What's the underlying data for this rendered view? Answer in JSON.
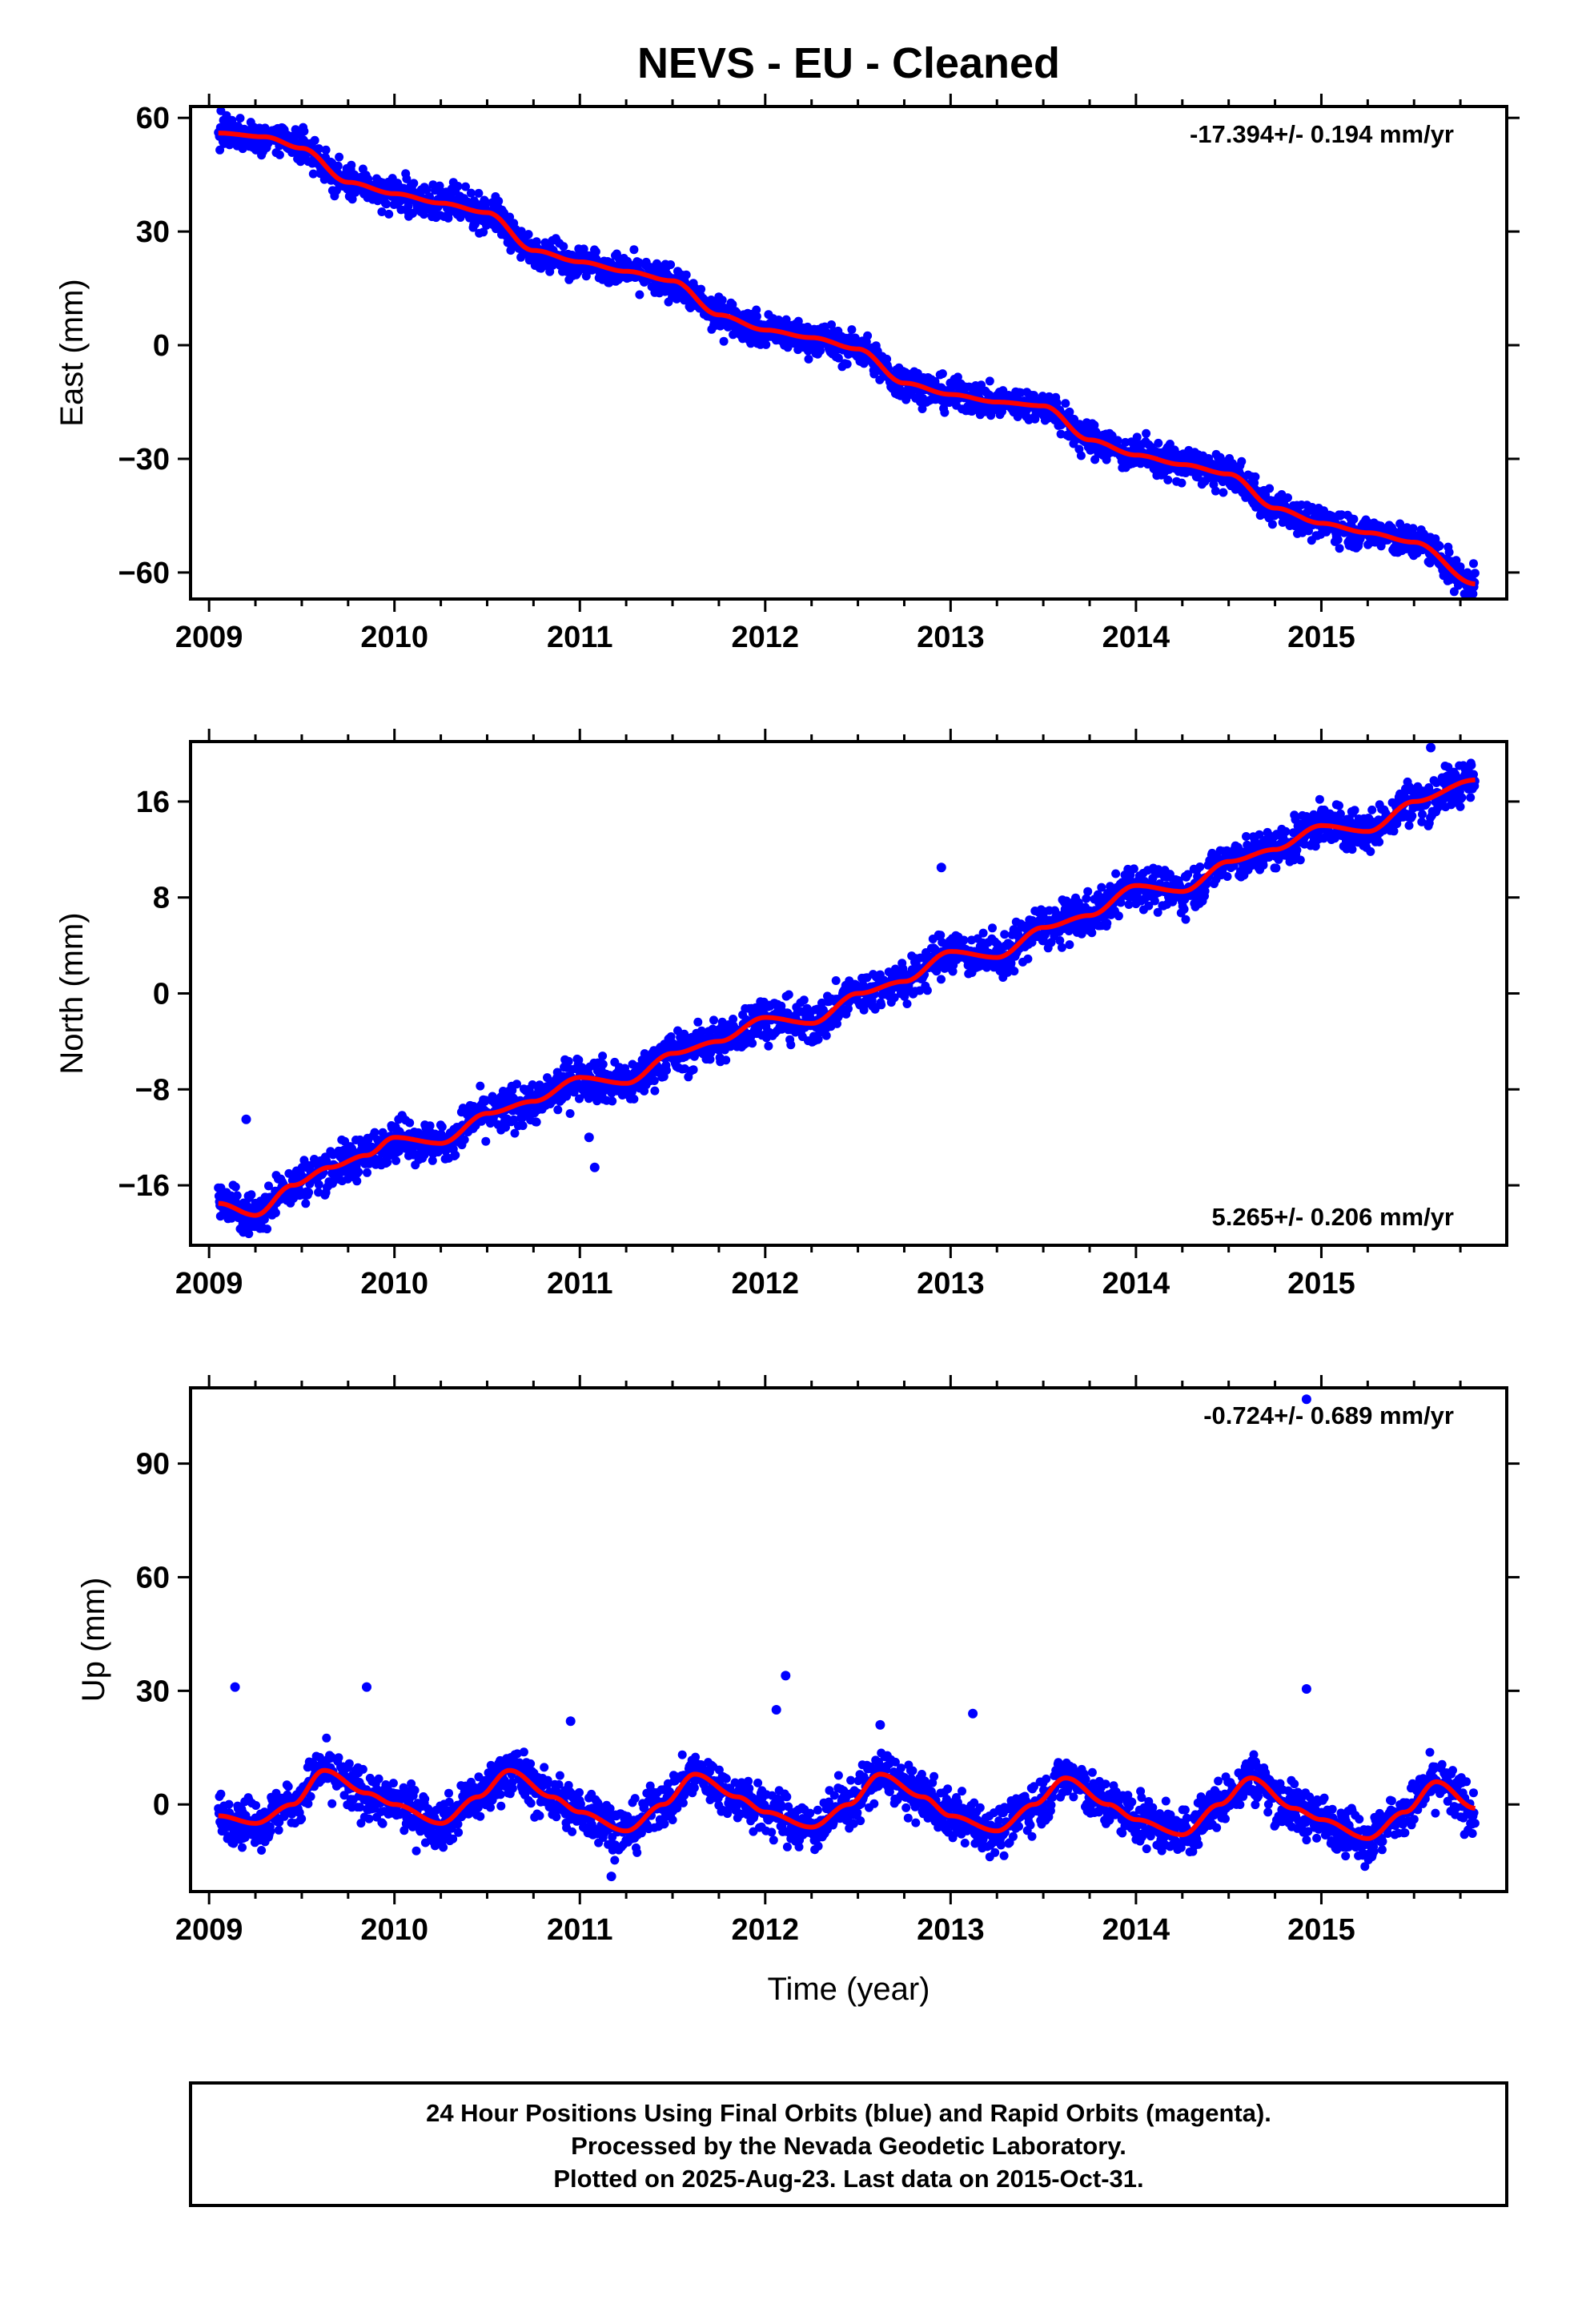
{
  "title": "NEVS  - EU - Cleaned",
  "colors": {
    "final_orbits": "#0000ff",
    "model": "#ff0000",
    "frame": "#000000",
    "background": "#ffffff"
  },
  "chart_data": [
    {
      "type": "scatter",
      "ylabel": "East (mm)",
      "xlim": [
        2008.9,
        2016.0
      ],
      "ylim": [
        -67,
        63
      ],
      "xticks": [
        2009,
        2010,
        2011,
        2012,
        2013,
        2014,
        2015
      ],
      "yticks": [
        60,
        30,
        0,
        -30,
        -60
      ],
      "rate_label": "-17.394+/- 0.194 mm/yr",
      "rate_position": "top-right",
      "model": {
        "x": [
          2009.05,
          2009.3,
          2009.5,
          2009.75,
          2010.0,
          2010.25,
          2010.5,
          2010.75,
          2011.0,
          2011.25,
          2011.5,
          2011.75,
          2012.0,
          2012.25,
          2012.5,
          2012.75,
          2013.0,
          2013.25,
          2013.5,
          2013.75,
          2014.0,
          2014.25,
          2014.5,
          2014.75,
          2015.0,
          2015.25,
          2015.5,
          2015.83
        ],
        "y": [
          56,
          55,
          52,
          43,
          40,
          37.5,
          35,
          25,
          22,
          19.5,
          17,
          8,
          4,
          2,
          -1,
          -10,
          -13,
          -15,
          -16,
          -25,
          -29,
          -31.5,
          -34,
          -43,
          -47,
          -49.5,
          -52,
          -63
        ]
      },
      "outliers": []
    },
    {
      "type": "scatter",
      "ylabel": "North (mm)",
      "xlim": [
        2008.9,
        2016.0
      ],
      "ylim": [
        -21,
        21
      ],
      "xticks": [
        2009,
        2010,
        2011,
        2012,
        2013,
        2014,
        2015
      ],
      "yticks": [
        16,
        8,
        0,
        -8,
        -16
      ],
      "rate_label": "5.265+/- 0.206 mm/yr",
      "rate_position": "bottom-right",
      "model": {
        "x": [
          2009.05,
          2009.25,
          2009.45,
          2009.65,
          2009.85,
          2010.0,
          2010.25,
          2010.5,
          2010.75,
          2011.0,
          2011.25,
          2011.5,
          2011.75,
          2012.0,
          2012.25,
          2012.5,
          2012.75,
          2013.0,
          2013.25,
          2013.5,
          2013.75,
          2014.0,
          2014.25,
          2014.5,
          2014.75,
          2015.0,
          2015.25,
          2015.5,
          2015.83
        ],
        "y": [
          -17.5,
          -18.5,
          -16,
          -14.5,
          -13.5,
          -12,
          -12.5,
          -10,
          -9,
          -7,
          -7.5,
          -5,
          -4,
          -2,
          -2.5,
          0,
          1,
          3.5,
          3,
          5.5,
          6.5,
          9,
          8.5,
          11,
          12,
          14,
          13.5,
          16,
          17.8
        ]
      },
      "outliers": [
        {
          "x": 2009.2,
          "y": -10.5
        },
        {
          "x": 2011.08,
          "y": -14.5
        },
        {
          "x": 2011.05,
          "y": -12
        },
        {
          "x": 2012.95,
          "y": 10.5
        },
        {
          "x": 2015.59,
          "y": 20.5
        }
      ]
    },
    {
      "type": "scatter",
      "ylabel": "Up (mm)",
      "xlabel": "Time (year)",
      "xlim": [
        2008.9,
        2016.0
      ],
      "ylim": [
        -23,
        110
      ],
      "xticks": [
        2009,
        2010,
        2011,
        2012,
        2013,
        2014,
        2015
      ],
      "yticks": [
        90,
        60,
        30,
        0
      ],
      "rate_label": "-0.724+/- 0.689 mm/yr",
      "rate_position": "top-right",
      "model": {
        "x": [
          2009.05,
          2009.25,
          2009.45,
          2009.62,
          2009.85,
          2010.0,
          2010.25,
          2010.45,
          2010.62,
          2010.85,
          2011.0,
          2011.25,
          2011.45,
          2011.62,
          2011.85,
          2012.0,
          2012.25,
          2012.45,
          2012.62,
          2012.85,
          2013.0,
          2013.25,
          2013.45,
          2013.62,
          2013.85,
          2014.0,
          2014.25,
          2014.45,
          2014.62,
          2014.85,
          2015.0,
          2015.25,
          2015.45,
          2015.62,
          2015.83
        ],
        "y": [
          -3,
          -5,
          0,
          9,
          3,
          0,
          -5,
          2,
          9,
          2,
          -2,
          -7,
          0,
          8,
          2,
          -2,
          -6,
          0,
          8,
          2,
          -3,
          -7,
          0,
          7,
          0,
          -4,
          -8,
          0,
          7,
          -1,
          -4,
          -9,
          -2,
          6,
          -1
        ]
      },
      "outliers": [
        {
          "x": 2009.14,
          "y": 31
        },
        {
          "x": 2009.85,
          "y": 31
        },
        {
          "x": 2010.95,
          "y": 22
        },
        {
          "x": 2012.11,
          "y": 34
        },
        {
          "x": 2012.06,
          "y": 25
        },
        {
          "x": 2013.12,
          "y": 24
        },
        {
          "x": 2012.62,
          "y": 21
        },
        {
          "x": 2014.92,
          "y": 30.5
        },
        {
          "x": 2014.92,
          "y": 107
        },
        {
          "x": 2011.17,
          "y": -19
        }
      ]
    }
  ],
  "footer": {
    "line1": "24 Hour Positions Using Final Orbits (blue) and Rapid Orbits (magenta).",
    "line2": "Processed by the Nevada Geodetic Laboratory.",
    "line3": "Plotted on 2025-Aug-23. Last data on 2015-Oct-31."
  }
}
